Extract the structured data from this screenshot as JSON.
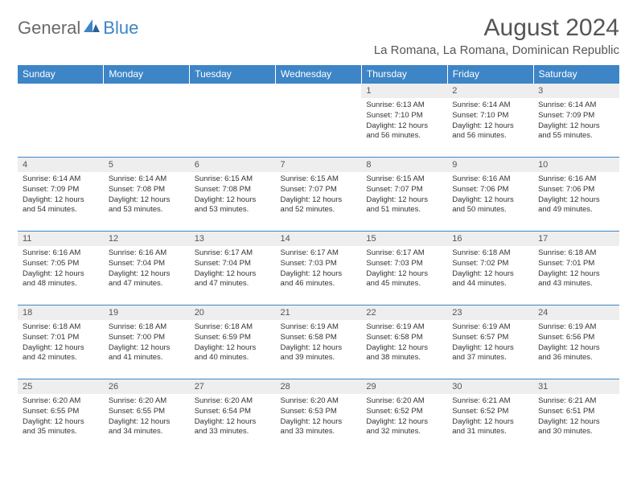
{
  "brand": {
    "part1": "General",
    "part2": "Blue"
  },
  "title": "August 2024",
  "location": "La Romana, La Romana, Dominican Republic",
  "colors": {
    "header_bg": "#3d85c6",
    "header_fg": "#ffffff",
    "daynum_bg": "#eeeeee",
    "text": "#333333",
    "rule": "#3d85c6"
  },
  "fonts": {
    "title_size": 30,
    "location_size": 15,
    "dayhead_size": 12,
    "cell_size": 9.5
  },
  "day_headers": [
    "Sunday",
    "Monday",
    "Tuesday",
    "Wednesday",
    "Thursday",
    "Friday",
    "Saturday"
  ],
  "weeks": [
    [
      {
        "empty": true
      },
      {
        "empty": true
      },
      {
        "empty": true
      },
      {
        "empty": true
      },
      {
        "n": "1",
        "sunrise": "Sunrise: 6:13 AM",
        "sunset": "Sunset: 7:10 PM",
        "daylight": "Daylight: 12 hours and 56 minutes."
      },
      {
        "n": "2",
        "sunrise": "Sunrise: 6:14 AM",
        "sunset": "Sunset: 7:10 PM",
        "daylight": "Daylight: 12 hours and 56 minutes."
      },
      {
        "n": "3",
        "sunrise": "Sunrise: 6:14 AM",
        "sunset": "Sunset: 7:09 PM",
        "daylight": "Daylight: 12 hours and 55 minutes."
      }
    ],
    [
      {
        "n": "4",
        "sunrise": "Sunrise: 6:14 AM",
        "sunset": "Sunset: 7:09 PM",
        "daylight": "Daylight: 12 hours and 54 minutes."
      },
      {
        "n": "5",
        "sunrise": "Sunrise: 6:14 AM",
        "sunset": "Sunset: 7:08 PM",
        "daylight": "Daylight: 12 hours and 53 minutes."
      },
      {
        "n": "6",
        "sunrise": "Sunrise: 6:15 AM",
        "sunset": "Sunset: 7:08 PM",
        "daylight": "Daylight: 12 hours and 53 minutes."
      },
      {
        "n": "7",
        "sunrise": "Sunrise: 6:15 AM",
        "sunset": "Sunset: 7:07 PM",
        "daylight": "Daylight: 12 hours and 52 minutes."
      },
      {
        "n": "8",
        "sunrise": "Sunrise: 6:15 AM",
        "sunset": "Sunset: 7:07 PM",
        "daylight": "Daylight: 12 hours and 51 minutes."
      },
      {
        "n": "9",
        "sunrise": "Sunrise: 6:16 AM",
        "sunset": "Sunset: 7:06 PM",
        "daylight": "Daylight: 12 hours and 50 minutes."
      },
      {
        "n": "10",
        "sunrise": "Sunrise: 6:16 AM",
        "sunset": "Sunset: 7:06 PM",
        "daylight": "Daylight: 12 hours and 49 minutes."
      }
    ],
    [
      {
        "n": "11",
        "sunrise": "Sunrise: 6:16 AM",
        "sunset": "Sunset: 7:05 PM",
        "daylight": "Daylight: 12 hours and 48 minutes."
      },
      {
        "n": "12",
        "sunrise": "Sunrise: 6:16 AM",
        "sunset": "Sunset: 7:04 PM",
        "daylight": "Daylight: 12 hours and 47 minutes."
      },
      {
        "n": "13",
        "sunrise": "Sunrise: 6:17 AM",
        "sunset": "Sunset: 7:04 PM",
        "daylight": "Daylight: 12 hours and 47 minutes."
      },
      {
        "n": "14",
        "sunrise": "Sunrise: 6:17 AM",
        "sunset": "Sunset: 7:03 PM",
        "daylight": "Daylight: 12 hours and 46 minutes."
      },
      {
        "n": "15",
        "sunrise": "Sunrise: 6:17 AM",
        "sunset": "Sunset: 7:03 PM",
        "daylight": "Daylight: 12 hours and 45 minutes."
      },
      {
        "n": "16",
        "sunrise": "Sunrise: 6:18 AM",
        "sunset": "Sunset: 7:02 PM",
        "daylight": "Daylight: 12 hours and 44 minutes."
      },
      {
        "n": "17",
        "sunrise": "Sunrise: 6:18 AM",
        "sunset": "Sunset: 7:01 PM",
        "daylight": "Daylight: 12 hours and 43 minutes."
      }
    ],
    [
      {
        "n": "18",
        "sunrise": "Sunrise: 6:18 AM",
        "sunset": "Sunset: 7:01 PM",
        "daylight": "Daylight: 12 hours and 42 minutes."
      },
      {
        "n": "19",
        "sunrise": "Sunrise: 6:18 AM",
        "sunset": "Sunset: 7:00 PM",
        "daylight": "Daylight: 12 hours and 41 minutes."
      },
      {
        "n": "20",
        "sunrise": "Sunrise: 6:18 AM",
        "sunset": "Sunset: 6:59 PM",
        "daylight": "Daylight: 12 hours and 40 minutes."
      },
      {
        "n": "21",
        "sunrise": "Sunrise: 6:19 AM",
        "sunset": "Sunset: 6:58 PM",
        "daylight": "Daylight: 12 hours and 39 minutes."
      },
      {
        "n": "22",
        "sunrise": "Sunrise: 6:19 AM",
        "sunset": "Sunset: 6:58 PM",
        "daylight": "Daylight: 12 hours and 38 minutes."
      },
      {
        "n": "23",
        "sunrise": "Sunrise: 6:19 AM",
        "sunset": "Sunset: 6:57 PM",
        "daylight": "Daylight: 12 hours and 37 minutes."
      },
      {
        "n": "24",
        "sunrise": "Sunrise: 6:19 AM",
        "sunset": "Sunset: 6:56 PM",
        "daylight": "Daylight: 12 hours and 36 minutes."
      }
    ],
    [
      {
        "n": "25",
        "sunrise": "Sunrise: 6:20 AM",
        "sunset": "Sunset: 6:55 PM",
        "daylight": "Daylight: 12 hours and 35 minutes."
      },
      {
        "n": "26",
        "sunrise": "Sunrise: 6:20 AM",
        "sunset": "Sunset: 6:55 PM",
        "daylight": "Daylight: 12 hours and 34 minutes."
      },
      {
        "n": "27",
        "sunrise": "Sunrise: 6:20 AM",
        "sunset": "Sunset: 6:54 PM",
        "daylight": "Daylight: 12 hours and 33 minutes."
      },
      {
        "n": "28",
        "sunrise": "Sunrise: 6:20 AM",
        "sunset": "Sunset: 6:53 PM",
        "daylight": "Daylight: 12 hours and 33 minutes."
      },
      {
        "n": "29",
        "sunrise": "Sunrise: 6:20 AM",
        "sunset": "Sunset: 6:52 PM",
        "daylight": "Daylight: 12 hours and 32 minutes."
      },
      {
        "n": "30",
        "sunrise": "Sunrise: 6:21 AM",
        "sunset": "Sunset: 6:52 PM",
        "daylight": "Daylight: 12 hours and 31 minutes."
      },
      {
        "n": "31",
        "sunrise": "Sunrise: 6:21 AM",
        "sunset": "Sunset: 6:51 PM",
        "daylight": "Daylight: 12 hours and 30 minutes."
      }
    ]
  ]
}
